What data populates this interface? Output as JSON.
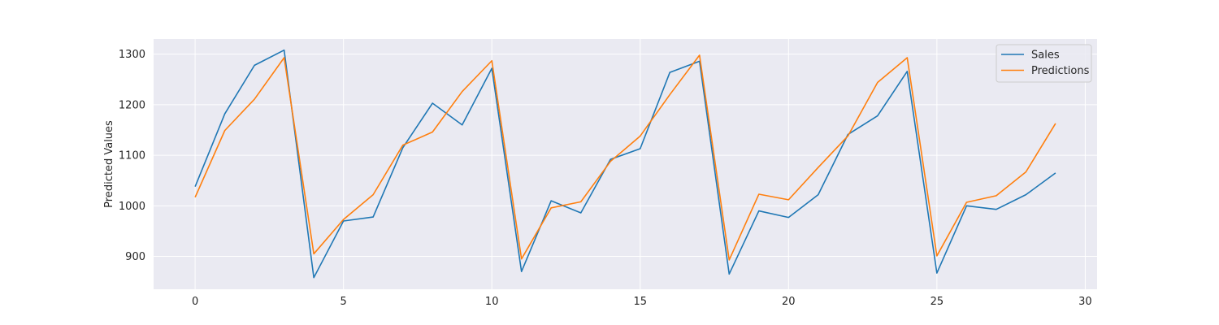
{
  "chart_data": {
    "type": "line",
    "title": "",
    "xlabel": "",
    "ylabel": "Predicted Values",
    "xlim": [
      -1.4,
      30.4
    ],
    "ylim": [
      835,
      1330
    ],
    "xticks": [
      0,
      5,
      10,
      15,
      20,
      25,
      30
    ],
    "xtick_labels": [
      "0",
      "5",
      "10",
      "15",
      "20",
      "25",
      "30"
    ],
    "yticks": [
      900,
      1000,
      1100,
      1200,
      1300
    ],
    "ytick_labels": [
      "900",
      "1000",
      "1100",
      "1200",
      "1300"
    ],
    "grid": true,
    "legend_position": "top-right",
    "x": [
      0,
      1,
      2,
      3,
      4,
      5,
      6,
      7,
      8,
      9,
      10,
      11,
      12,
      13,
      14,
      15,
      16,
      17,
      18,
      19,
      20,
      21,
      22,
      23,
      24,
      25,
      26,
      27,
      28,
      29
    ],
    "series": [
      {
        "name": "Sales",
        "color": "#1f77b4",
        "values": [
          1038,
          1182,
          1278,
          1308,
          858,
          970,
          978,
          1115,
          1203,
          1160,
          1272,
          870,
          1010,
          986,
          1092,
          1113,
          1264,
          1286,
          865,
          990,
          977,
          1022,
          1141,
          1178,
          1266,
          867,
          1000,
          993,
          1022,
          1065
        ]
      },
      {
        "name": "Predictions",
        "color": "#ff7f0e",
        "values": [
          1017,
          1149,
          1211,
          1293,
          905,
          973,
          1022,
          1120,
          1146,
          1226,
          1287,
          895,
          996,
          1008,
          1088,
          1138,
          1220,
          1298,
          893,
          1023,
          1012,
          1076,
          1138,
          1244,
          1293,
          901,
          1007,
          1020,
          1067,
          1163
        ]
      }
    ]
  }
}
